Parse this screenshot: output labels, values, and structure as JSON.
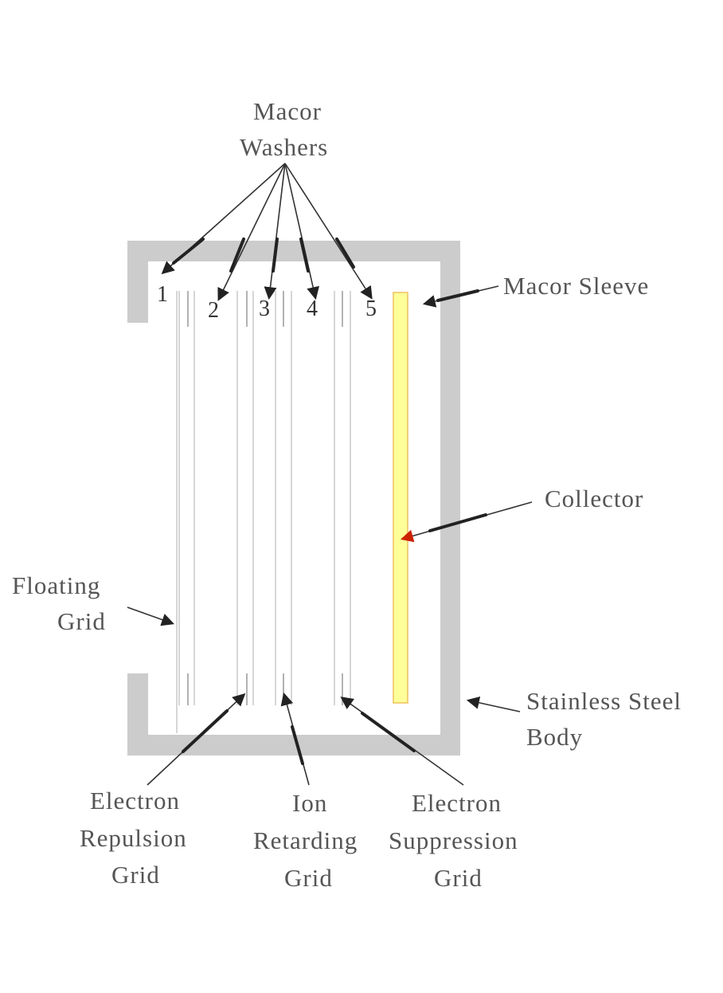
{
  "labels": {
    "macor_washers": [
      "Macor",
      "Washers"
    ],
    "macor_sleeve": "Macor Sleeve",
    "collector": "Collector",
    "floating_grid": [
      "Floating",
      "Grid"
    ],
    "stainless_steel_body": [
      "Stainless Steel",
      "Body"
    ],
    "electron_repulsion_grid": [
      "Electron",
      "Repulsion",
      "Grid"
    ],
    "ion_retarding_grid": [
      "Ion",
      "Retarding",
      "Grid"
    ],
    "electron_suppression_grid": [
      "Electron",
      "Suppression",
      "Grid"
    ]
  },
  "washer_numbers": [
    "1",
    "2",
    "3",
    "4",
    "5"
  ],
  "colors": {
    "body": "#cccccc",
    "collector_fill": "#ffff99",
    "collector_edge": "#f0c060",
    "arrow_red": "#cc2200"
  }
}
